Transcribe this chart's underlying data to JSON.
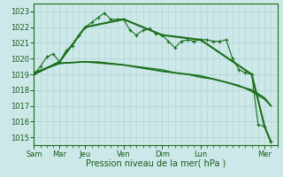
{
  "xlabel": "Pression niveau de la mer( hPa )",
  "ylim": [
    1014.5,
    1023.5
  ],
  "yticks": [
    1015,
    1016,
    1017,
    1018,
    1019,
    1020,
    1021,
    1022,
    1023
  ],
  "xlim": [
    0,
    38
  ],
  "day_tick_positions": [
    0,
    4,
    8,
    14,
    20,
    26,
    36
  ],
  "day_tick_labels": [
    "Sam",
    "Mar",
    "Jeu",
    "Ven",
    "Dim",
    "Lun",
    "Mer"
  ],
  "minor_xticks": [
    0,
    1,
    2,
    3,
    4,
    5,
    6,
    7,
    8,
    9,
    10,
    11,
    12,
    13,
    14,
    15,
    16,
    17,
    18,
    19,
    20,
    21,
    22,
    23,
    24,
    25,
    26,
    27,
    28,
    29,
    30,
    31,
    32,
    33,
    34,
    35,
    36,
    37,
    38
  ],
  "bg_color": "#cce8e8",
  "grid_color": "#b8d8d8",
  "line_color": "#1a6e1a",
  "line1_x": [
    0,
    1,
    2,
    3,
    4,
    5,
    6,
    7,
    8,
    9,
    10,
    11,
    12,
    13,
    14,
    15,
    16,
    17,
    18,
    19,
    20,
    21,
    22,
    23,
    24,
    25,
    26,
    27,
    28,
    29,
    30,
    31,
    32,
    33,
    34,
    35,
    36,
    37
  ],
  "line1_y": [
    1019.0,
    1019.5,
    1020.1,
    1020.3,
    1019.8,
    1020.5,
    1020.8,
    1021.5,
    1022.0,
    1022.3,
    1022.6,
    1022.9,
    1022.5,
    1022.5,
    1022.5,
    1021.8,
    1021.5,
    1021.8,
    1021.9,
    1021.6,
    1021.5,
    1021.1,
    1020.7,
    1021.1,
    1021.2,
    1021.1,
    1021.2,
    1021.2,
    1021.1,
    1021.1,
    1021.2,
    1020.0,
    1019.3,
    1019.1,
    1019.0,
    1015.8,
    1015.7,
    1014.7
  ],
  "line2_x": [
    0,
    4,
    8,
    14,
    20,
    26,
    34,
    36,
    37
  ],
  "line2_y": [
    1019.0,
    1019.8,
    1022.0,
    1022.5,
    1021.5,
    1021.2,
    1019.0,
    1015.7,
    1014.7
  ],
  "line3_x": [
    0,
    1,
    2,
    4,
    8,
    10,
    12,
    14,
    16,
    18,
    20,
    22,
    24,
    26,
    28,
    30,
    32,
    34,
    36,
    37
  ],
  "line3_y": [
    1019.0,
    1019.2,
    1019.4,
    1019.7,
    1019.8,
    1019.8,
    1019.7,
    1019.6,
    1019.5,
    1019.4,
    1019.3,
    1019.1,
    1019.0,
    1018.8,
    1018.7,
    1018.5,
    1018.3,
    1017.9,
    1017.4,
    1017.0
  ],
  "line4_x": [
    0,
    4,
    8,
    14,
    20,
    26,
    30,
    34,
    36,
    37
  ],
  "line4_y": [
    1019.1,
    1019.7,
    1019.8,
    1019.6,
    1019.2,
    1018.9,
    1018.5,
    1018.0,
    1017.5,
    1017.0
  ]
}
